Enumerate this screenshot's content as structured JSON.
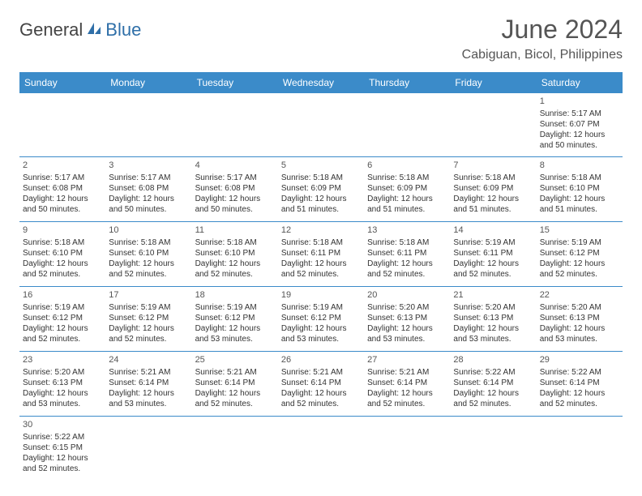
{
  "logo": {
    "text1": "General",
    "text2": "Blue"
  },
  "title": "June 2024",
  "location": "Cabiguan, Bicol, Philippines",
  "colors": {
    "header_bg": "#3b8bc9",
    "header_text": "#ffffff",
    "rule": "#3b8bc9",
    "logo_gray": "#444444",
    "logo_blue": "#2f6fa8",
    "title_color": "#555555",
    "body_bg": "#ffffff",
    "text": "#333333"
  },
  "type": "calendar-table",
  "weekdays": [
    "Sunday",
    "Monday",
    "Tuesday",
    "Wednesday",
    "Thursday",
    "Friday",
    "Saturday"
  ],
  "weeks": [
    [
      null,
      null,
      null,
      null,
      null,
      null,
      {
        "d": "1",
        "sr": "Sunrise: 5:17 AM",
        "ss": "Sunset: 6:07 PM",
        "dl1": "Daylight: 12 hours",
        "dl2": "and 50 minutes."
      }
    ],
    [
      {
        "d": "2",
        "sr": "Sunrise: 5:17 AM",
        "ss": "Sunset: 6:08 PM",
        "dl1": "Daylight: 12 hours",
        "dl2": "and 50 minutes."
      },
      {
        "d": "3",
        "sr": "Sunrise: 5:17 AM",
        "ss": "Sunset: 6:08 PM",
        "dl1": "Daylight: 12 hours",
        "dl2": "and 50 minutes."
      },
      {
        "d": "4",
        "sr": "Sunrise: 5:17 AM",
        "ss": "Sunset: 6:08 PM",
        "dl1": "Daylight: 12 hours",
        "dl2": "and 50 minutes."
      },
      {
        "d": "5",
        "sr": "Sunrise: 5:18 AM",
        "ss": "Sunset: 6:09 PM",
        "dl1": "Daylight: 12 hours",
        "dl2": "and 51 minutes."
      },
      {
        "d": "6",
        "sr": "Sunrise: 5:18 AM",
        "ss": "Sunset: 6:09 PM",
        "dl1": "Daylight: 12 hours",
        "dl2": "and 51 minutes."
      },
      {
        "d": "7",
        "sr": "Sunrise: 5:18 AM",
        "ss": "Sunset: 6:09 PM",
        "dl1": "Daylight: 12 hours",
        "dl2": "and 51 minutes."
      },
      {
        "d": "8",
        "sr": "Sunrise: 5:18 AM",
        "ss": "Sunset: 6:10 PM",
        "dl1": "Daylight: 12 hours",
        "dl2": "and 51 minutes."
      }
    ],
    [
      {
        "d": "9",
        "sr": "Sunrise: 5:18 AM",
        "ss": "Sunset: 6:10 PM",
        "dl1": "Daylight: 12 hours",
        "dl2": "and 52 minutes."
      },
      {
        "d": "10",
        "sr": "Sunrise: 5:18 AM",
        "ss": "Sunset: 6:10 PM",
        "dl1": "Daylight: 12 hours",
        "dl2": "and 52 minutes."
      },
      {
        "d": "11",
        "sr": "Sunrise: 5:18 AM",
        "ss": "Sunset: 6:10 PM",
        "dl1": "Daylight: 12 hours",
        "dl2": "and 52 minutes."
      },
      {
        "d": "12",
        "sr": "Sunrise: 5:18 AM",
        "ss": "Sunset: 6:11 PM",
        "dl1": "Daylight: 12 hours",
        "dl2": "and 52 minutes."
      },
      {
        "d": "13",
        "sr": "Sunrise: 5:18 AM",
        "ss": "Sunset: 6:11 PM",
        "dl1": "Daylight: 12 hours",
        "dl2": "and 52 minutes."
      },
      {
        "d": "14",
        "sr": "Sunrise: 5:19 AM",
        "ss": "Sunset: 6:11 PM",
        "dl1": "Daylight: 12 hours",
        "dl2": "and 52 minutes."
      },
      {
        "d": "15",
        "sr": "Sunrise: 5:19 AM",
        "ss": "Sunset: 6:12 PM",
        "dl1": "Daylight: 12 hours",
        "dl2": "and 52 minutes."
      }
    ],
    [
      {
        "d": "16",
        "sr": "Sunrise: 5:19 AM",
        "ss": "Sunset: 6:12 PM",
        "dl1": "Daylight: 12 hours",
        "dl2": "and 52 minutes."
      },
      {
        "d": "17",
        "sr": "Sunrise: 5:19 AM",
        "ss": "Sunset: 6:12 PM",
        "dl1": "Daylight: 12 hours",
        "dl2": "and 52 minutes."
      },
      {
        "d": "18",
        "sr": "Sunrise: 5:19 AM",
        "ss": "Sunset: 6:12 PM",
        "dl1": "Daylight: 12 hours",
        "dl2": "and 53 minutes."
      },
      {
        "d": "19",
        "sr": "Sunrise: 5:19 AM",
        "ss": "Sunset: 6:12 PM",
        "dl1": "Daylight: 12 hours",
        "dl2": "and 53 minutes."
      },
      {
        "d": "20",
        "sr": "Sunrise: 5:20 AM",
        "ss": "Sunset: 6:13 PM",
        "dl1": "Daylight: 12 hours",
        "dl2": "and 53 minutes."
      },
      {
        "d": "21",
        "sr": "Sunrise: 5:20 AM",
        "ss": "Sunset: 6:13 PM",
        "dl1": "Daylight: 12 hours",
        "dl2": "and 53 minutes."
      },
      {
        "d": "22",
        "sr": "Sunrise: 5:20 AM",
        "ss": "Sunset: 6:13 PM",
        "dl1": "Daylight: 12 hours",
        "dl2": "and 53 minutes."
      }
    ],
    [
      {
        "d": "23",
        "sr": "Sunrise: 5:20 AM",
        "ss": "Sunset: 6:13 PM",
        "dl1": "Daylight: 12 hours",
        "dl2": "and 53 minutes."
      },
      {
        "d": "24",
        "sr": "Sunrise: 5:21 AM",
        "ss": "Sunset: 6:14 PM",
        "dl1": "Daylight: 12 hours",
        "dl2": "and 53 minutes."
      },
      {
        "d": "25",
        "sr": "Sunrise: 5:21 AM",
        "ss": "Sunset: 6:14 PM",
        "dl1": "Daylight: 12 hours",
        "dl2": "and 52 minutes."
      },
      {
        "d": "26",
        "sr": "Sunrise: 5:21 AM",
        "ss": "Sunset: 6:14 PM",
        "dl1": "Daylight: 12 hours",
        "dl2": "and 52 minutes."
      },
      {
        "d": "27",
        "sr": "Sunrise: 5:21 AM",
        "ss": "Sunset: 6:14 PM",
        "dl1": "Daylight: 12 hours",
        "dl2": "and 52 minutes."
      },
      {
        "d": "28",
        "sr": "Sunrise: 5:22 AM",
        "ss": "Sunset: 6:14 PM",
        "dl1": "Daylight: 12 hours",
        "dl2": "and 52 minutes."
      },
      {
        "d": "29",
        "sr": "Sunrise: 5:22 AM",
        "ss": "Sunset: 6:14 PM",
        "dl1": "Daylight: 12 hours",
        "dl2": "and 52 minutes."
      }
    ],
    [
      {
        "d": "30",
        "sr": "Sunrise: 5:22 AM",
        "ss": "Sunset: 6:15 PM",
        "dl1": "Daylight: 12 hours",
        "dl2": "and 52 minutes."
      },
      null,
      null,
      null,
      null,
      null,
      null
    ]
  ]
}
